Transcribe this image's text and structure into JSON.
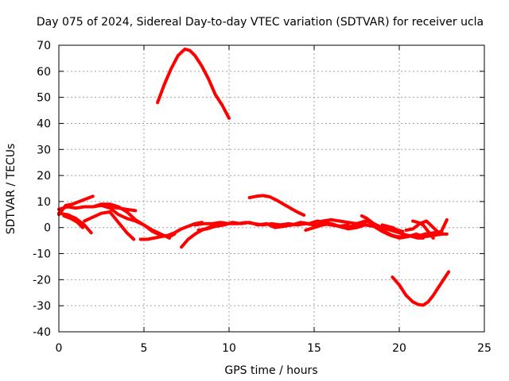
{
  "chart_data": {
    "type": "line",
    "title": "Day 075 of 2024, Sidereal Day-to-day VTEC variation (SDTVAR) for receiver ucla",
    "xlabel": "GPS time / hours",
    "ylabel": "SDTVAR / TECUs",
    "xlim": [
      0,
      25
    ],
    "ylim": [
      -40,
      70
    ],
    "xticks": [
      0,
      5,
      10,
      15,
      20,
      25
    ],
    "yticks": [
      -40,
      -30,
      -20,
      -10,
      0,
      10,
      20,
      30,
      40,
      50,
      60,
      70
    ],
    "grid": true,
    "legend": "none",
    "line_color": "#ff0000",
    "series": [
      {
        "name": "s1",
        "x": [
          5.8,
          6.2,
          6.6,
          7.0,
          7.4,
          7.7,
          8.0,
          8.4,
          8.8,
          9.2,
          9.6,
          10.0
        ],
        "y": [
          48,
          55,
          61,
          66,
          68.5,
          68,
          66,
          62,
          57,
          51,
          47,
          42
        ]
      },
      {
        "name": "s2",
        "x": [
          11.2,
          11.6,
          12.0,
          12.4,
          12.8,
          13.2,
          13.6,
          14.0,
          14.4
        ],
        "y": [
          11.5,
          12.0,
          12.3,
          11.8,
          10.5,
          9.0,
          7.5,
          6.0,
          4.8
        ]
      },
      {
        "name": "s3",
        "x": [
          19.6,
          20.0,
          20.4,
          20.8,
          21.1,
          21.4,
          21.7,
          22.0,
          22.3,
          22.6,
          22.9
        ],
        "y": [
          -19,
          -22,
          -26,
          -28.5,
          -29.5,
          -29.8,
          -28.5,
          -26,
          -23,
          -20,
          -17
        ]
      },
      {
        "name": "s4",
        "x": [
          0.0,
          0.5,
          1.0,
          1.5,
          2.0,
          2.5,
          3.0,
          3.5,
          4.0,
          4.5
        ],
        "y": [
          7.0,
          8.0,
          7.5,
          8.0,
          8.0,
          8.5,
          8.0,
          7.5,
          7.0,
          6.5
        ]
      },
      {
        "name": "s5",
        "x": [
          0.0,
          0.4,
          0.8,
          1.2,
          1.6,
          2.0
        ],
        "y": [
          5.0,
          8.5,
          9.0,
          10.0,
          11.0,
          12.0
        ]
      },
      {
        "name": "s6",
        "x": [
          0.0,
          0.5,
          1.0,
          1.5,
          1.9
        ],
        "y": [
          5.5,
          5.0,
          3.5,
          1.0,
          -2.0
        ]
      },
      {
        "name": "s7",
        "x": [
          0.3,
          0.7,
          1.1,
          1.4
        ],
        "y": [
          4.5,
          3.5,
          2.0,
          0.0
        ]
      },
      {
        "name": "s8",
        "x": [
          1.5,
          2.0,
          2.5,
          3.0,
          3.5,
          4.0,
          4.4
        ],
        "y": [
          2.5,
          4.0,
          5.5,
          6.0,
          2.0,
          -2.0,
          -4.5
        ]
      },
      {
        "name": "s9",
        "x": [
          2.5,
          3.0,
          3.5,
          4.0,
          4.5,
          5.0,
          5.5,
          6.0,
          6.5
        ],
        "y": [
          8.5,
          7.5,
          5.0,
          3.5,
          2.5,
          1.0,
          -1.0,
          -2.5,
          -4.0
        ]
      },
      {
        "name": "s10",
        "x": [
          2.0,
          2.5,
          3.0,
          3.5,
          4.0,
          4.5,
          5.0,
          5.5,
          6.0,
          6.5,
          6.8
        ],
        "y": [
          8.0,
          9.0,
          9.0,
          8.0,
          6.0,
          3.0,
          1.0,
          -1.5,
          -3.0,
          -3.5,
          -2.5
        ]
      },
      {
        "name": "s11",
        "x": [
          4.8,
          5.2,
          5.6,
          6.0,
          6.4,
          6.8,
          7.2,
          7.6,
          8.0,
          8.4
        ],
        "y": [
          -4.5,
          -4.5,
          -4.0,
          -3.5,
          -3.0,
          -2.0,
          -0.5,
          0.5,
          1.5,
          2.0
        ]
      },
      {
        "name": "s12",
        "x": [
          7.2,
          7.6,
          8.0,
          8.4,
          8.8,
          9.2,
          9.6
        ],
        "y": [
          -7.5,
          -4.5,
          -2.5,
          -1.0,
          0.0,
          1.0,
          1.5
        ]
      },
      {
        "name": "s13",
        "x": [
          8.0,
          8.5,
          9.0,
          9.5,
          10.0,
          10.5,
          11.0,
          11.5,
          12.0,
          12.5,
          13.0,
          13.5,
          14.0,
          14.5,
          15.0,
          15.5,
          16.0,
          16.5,
          17.0
        ],
        "y": [
          1.0,
          1.5,
          1.5,
          2.0,
          1.5,
          1.5,
          2.0,
          1.5,
          1.0,
          1.5,
          1.0,
          1.5,
          1.0,
          1.5,
          1.0,
          1.5,
          1.0,
          0.5,
          1.0
        ]
      },
      {
        "name": "s14",
        "x": [
          8.2,
          8.7,
          9.2,
          9.7,
          10.2,
          10.7,
          11.2,
          11.7,
          12.2,
          12.7,
          13.2,
          13.7,
          14.2,
          14.7,
          15.2,
          15.7,
          16.2,
          16.7,
          17.2,
          17.7,
          18.0
        ],
        "y": [
          -1.0,
          -0.5,
          0.5,
          1.0,
          2.0,
          1.5,
          2.0,
          1.0,
          1.5,
          0.0,
          0.5,
          1.0,
          2.0,
          1.5,
          2.5,
          2.0,
          1.0,
          0.0,
          0.5,
          1.0,
          2.0
        ]
      },
      {
        "name": "s15",
        "x": [
          14.5,
          15.0,
          15.5,
          16.0,
          16.5,
          17.0,
          17.5,
          18.0,
          18.5,
          19.0,
          19.5,
          20.0,
          20.5,
          21.0,
          21.5,
          22.0,
          22.5,
          22.8
        ],
        "y": [
          -1.0,
          0.0,
          1.0,
          1.5,
          0.5,
          -0.5,
          0.0,
          1.0,
          0.5,
          -1.5,
          -3.0,
          -4.0,
          -3.5,
          -2.5,
          -3.5,
          -3.0,
          -2.5,
          -2.5
        ]
      },
      {
        "name": "s16",
        "x": [
          15.5,
          16.0,
          16.5,
          17.0,
          17.5,
          18.0,
          18.5,
          19.0,
          19.5,
          20.0,
          20.5,
          21.0,
          21.5,
          22.0,
          22.5
        ],
        "y": [
          2.5,
          3.0,
          2.5,
          2.0,
          1.5,
          2.5,
          1.5,
          0.0,
          -1.0,
          -2.0,
          -3.0,
          -3.5,
          -2.5,
          -2.0,
          -1.5
        ]
      },
      {
        "name": "s17",
        "x": [
          17.8,
          18.1,
          18.4,
          18.7,
          19.0,
          19.3,
          19.6,
          19.9,
          20.2,
          20.5,
          20.8,
          21.1,
          21.4
        ],
        "y": [
          4.5,
          3.5,
          2.0,
          0.5,
          -1.0,
          -2.0,
          -3.0,
          -3.5,
          -3.5,
          -3.0,
          -3.5,
          -4.0,
          -4.0
        ]
      },
      {
        "name": "s18",
        "x": [
          20.4,
          20.8,
          21.2,
          21.6,
          22.0,
          22.4,
          22.8
        ],
        "y": [
          -1.0,
          -0.5,
          1.5,
          2.5,
          0.0,
          -2.5,
          3.0
        ]
      },
      {
        "name": "s19",
        "x": [
          20.8,
          21.1,
          21.4,
          21.7,
          22.0
        ],
        "y": [
          2.5,
          2.0,
          1.0,
          -1.5,
          -4.0
        ]
      },
      {
        "name": "s20",
        "x": [
          19.0,
          19.3,
          19.6,
          19.9,
          20.2
        ],
        "y": [
          1.0,
          0.5,
          0.0,
          -1.0,
          -1.5
        ]
      }
    ]
  }
}
